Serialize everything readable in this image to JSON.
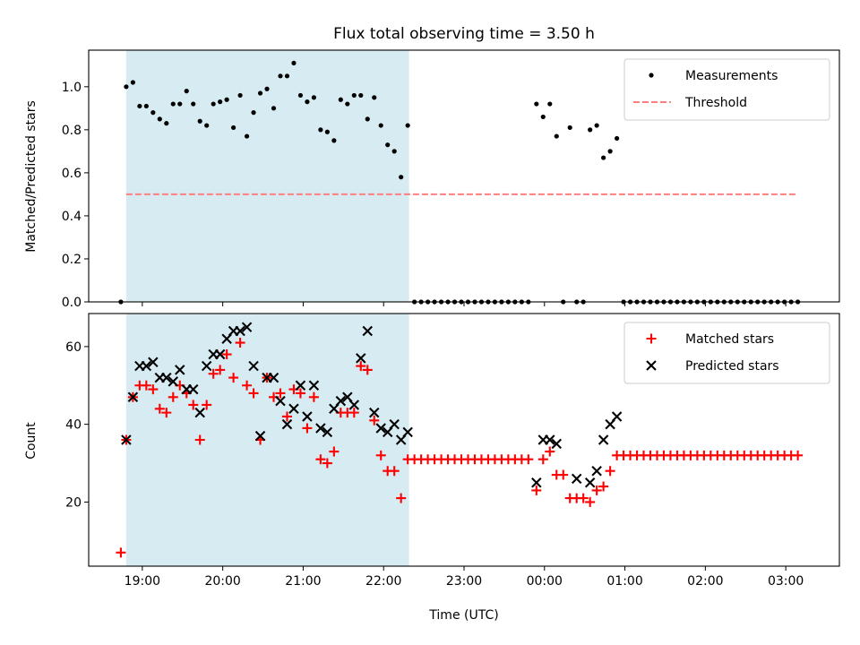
{
  "chart_data": [
    {
      "type": "scatter",
      "title": "Flux total observing time = 3.50 h",
      "ylabel": "Matched/Predicted stars",
      "xlabel": "",
      "xlim": [
        "18:20",
        "03:40"
      ],
      "ylim": [
        0,
        1.17
      ],
      "yticks": [
        "0.0",
        "0.2",
        "0.4",
        "0.6",
        "0.8",
        "1.0"
      ],
      "highlight_span": [
        "18:48",
        "22:19"
      ],
      "legend": {
        "position": "top-right",
        "entries": [
          "Measurements",
          "Threshold"
        ]
      },
      "threshold": {
        "name": "Threshold",
        "y": 0.5,
        "x_start": "18:48",
        "x_end": "03:09",
        "color": "#ff7f7f"
      },
      "series": [
        {
          "name": "Measurements",
          "color": "#000000",
          "points": [
            [
              "18:44",
              0
            ],
            [
              "18:48",
              1.0
            ],
            [
              "18:53",
              1.02
            ],
            [
              "18:58",
              0.91
            ],
            [
              "19:03",
              0.91
            ],
            [
              "19:08",
              0.88
            ],
            [
              "19:13",
              0.85
            ],
            [
              "19:18",
              0.83
            ],
            [
              "19:23",
              0.92
            ],
            [
              "19:28",
              0.92
            ],
            [
              "19:33",
              0.98
            ],
            [
              "19:38",
              0.92
            ],
            [
              "19:43",
              0.84
            ],
            [
              "19:48",
              0.82
            ],
            [
              "19:53",
              0.92
            ],
            [
              "19:58",
              0.93
            ],
            [
              "20:03",
              0.94
            ],
            [
              "20:08",
              0.81
            ],
            [
              "20:13",
              0.96
            ],
            [
              "20:18",
              0.77
            ],
            [
              "20:23",
              0.88
            ],
            [
              "20:28",
              0.97
            ],
            [
              "20:33",
              0.99
            ],
            [
              "20:38",
              0.9
            ],
            [
              "20:43",
              1.05
            ],
            [
              "20:48",
              1.05
            ],
            [
              "20:53",
              1.11
            ],
            [
              "20:58",
              0.96
            ],
            [
              "21:03",
              0.93
            ],
            [
              "21:08",
              0.95
            ],
            [
              "21:13",
              0.8
            ],
            [
              "21:18",
              0.79
            ],
            [
              "21:23",
              0.75
            ],
            [
              "21:28",
              0.94
            ],
            [
              "21:33",
              0.92
            ],
            [
              "21:38",
              0.96
            ],
            [
              "21:43",
              0.96
            ],
            [
              "21:48",
              0.85
            ],
            [
              "21:53",
              0.95
            ],
            [
              "21:58",
              0.82
            ],
            [
              "22:03",
              0.73
            ],
            [
              "22:08",
              0.7
            ],
            [
              "22:13",
              0.58
            ],
            [
              "22:18",
              0.82
            ],
            [
              "22:23",
              0
            ],
            [
              "22:28",
              0
            ],
            [
              "22:33",
              0
            ],
            [
              "22:38",
              0
            ],
            [
              "22:43",
              0
            ],
            [
              "22:48",
              0
            ],
            [
              "22:53",
              0
            ],
            [
              "22:58",
              0
            ],
            [
              "23:03",
              0
            ],
            [
              "23:08",
              0
            ],
            [
              "23:13",
              0
            ],
            [
              "23:18",
              0
            ],
            [
              "23:23",
              0
            ],
            [
              "23:28",
              0
            ],
            [
              "23:33",
              0
            ],
            [
              "23:38",
              0
            ],
            [
              "23:43",
              0
            ],
            [
              "23:48",
              0
            ],
            [
              "23:54",
              0.92
            ],
            [
              "23:59",
              0.86
            ],
            [
              "00:04",
              0.92
            ],
            [
              "00:09",
              0.77
            ],
            [
              "00:14",
              0
            ],
            [
              "00:19",
              0.81
            ],
            [
              "00:24",
              0
            ],
            [
              "00:29",
              0
            ],
            [
              "00:34",
              0.8
            ],
            [
              "00:39",
              0.82
            ],
            [
              "00:44",
              0.67
            ],
            [
              "00:49",
              0.7
            ],
            [
              "00:54",
              0.76
            ],
            [
              "00:59",
              0
            ],
            [
              "01:04",
              0
            ],
            [
              "01:09",
              0
            ],
            [
              "01:14",
              0
            ],
            [
              "01:19",
              0
            ],
            [
              "01:24",
              0
            ],
            [
              "01:29",
              0
            ],
            [
              "01:34",
              0
            ],
            [
              "01:39",
              0
            ],
            [
              "01:44",
              0
            ],
            [
              "01:49",
              0
            ],
            [
              "01:54",
              0
            ],
            [
              "01:59",
              0
            ],
            [
              "02:04",
              0
            ],
            [
              "02:09",
              0
            ],
            [
              "02:14",
              0
            ],
            [
              "02:19",
              0
            ],
            [
              "02:24",
              0
            ],
            [
              "02:29",
              0
            ],
            [
              "02:34",
              0
            ],
            [
              "02:39",
              0
            ],
            [
              "02:44",
              0
            ],
            [
              "02:49",
              0
            ],
            [
              "02:54",
              0
            ],
            [
              "02:59",
              0
            ],
            [
              "03:04",
              0
            ],
            [
              "03:09",
              0
            ]
          ]
        }
      ]
    },
    {
      "type": "scatter",
      "title": "",
      "ylabel": "Count",
      "xlabel": "Time (UTC)",
      "xlim": [
        "18:20",
        "03:40"
      ],
      "ylim": [
        3.5,
        68.5
      ],
      "yticks": [
        "20",
        "40",
        "60"
      ],
      "xticks": [
        "19:00",
        "20:00",
        "21:00",
        "22:00",
        "23:00",
        "00:00",
        "01:00",
        "02:00",
        "03:00"
      ],
      "highlight_span": [
        "18:48",
        "22:19"
      ],
      "legend": {
        "position": "top-right",
        "entries": [
          "Matched stars",
          "Predicted stars"
        ]
      },
      "series": [
        {
          "name": "Matched stars",
          "marker": "plus",
          "color": "#ff0000",
          "points": [
            [
              "18:44",
              7
            ],
            [
              "18:48",
              36
            ],
            [
              "18:53",
              47
            ],
            [
              "18:58",
              50
            ],
            [
              "19:03",
              50
            ],
            [
              "19:08",
              49
            ],
            [
              "19:13",
              44
            ],
            [
              "19:18",
              43
            ],
            [
              "19:23",
              47
            ],
            [
              "19:28",
              50
            ],
            [
              "19:33",
              48
            ],
            [
              "19:38",
              45
            ],
            [
              "19:43",
              36
            ],
            [
              "19:48",
              45
            ],
            [
              "19:53",
              53
            ],
            [
              "19:58",
              54
            ],
            [
              "20:03",
              58
            ],
            [
              "20:08",
              52
            ],
            [
              "20:13",
              61
            ],
            [
              "20:18",
              50
            ],
            [
              "20:23",
              48
            ],
            [
              "20:28",
              36
            ],
            [
              "20:33",
              52
            ],
            [
              "20:38",
              47
            ],
            [
              "20:43",
              48
            ],
            [
              "20:48",
              42
            ],
            [
              "20:53",
              49
            ],
            [
              "20:58",
              48
            ],
            [
              "21:03",
              39
            ],
            [
              "21:08",
              47
            ],
            [
              "21:13",
              31
            ],
            [
              "21:18",
              30
            ],
            [
              "21:23",
              33
            ],
            [
              "21:28",
              43
            ],
            [
              "21:33",
              43
            ],
            [
              "21:38",
              43
            ],
            [
              "21:43",
              55
            ],
            [
              "21:48",
              54
            ],
            [
              "21:53",
              41
            ],
            [
              "21:58",
              32
            ],
            [
              "22:03",
              28
            ],
            [
              "22:08",
              28
            ],
            [
              "22:13",
              21
            ],
            [
              "22:18",
              31
            ],
            [
              "22:23",
              31
            ],
            [
              "22:28",
              31
            ],
            [
              "22:33",
              31
            ],
            [
              "22:38",
              31
            ],
            [
              "22:43",
              31
            ],
            [
              "22:48",
              31
            ],
            [
              "22:53",
              31
            ],
            [
              "22:58",
              31
            ],
            [
              "23:03",
              31
            ],
            [
              "23:08",
              31
            ],
            [
              "23:13",
              31
            ],
            [
              "23:18",
              31
            ],
            [
              "23:23",
              31
            ],
            [
              "23:28",
              31
            ],
            [
              "23:33",
              31
            ],
            [
              "23:38",
              31
            ],
            [
              "23:43",
              31
            ],
            [
              "23:48",
              31
            ],
            [
              "23:54",
              23
            ],
            [
              "23:59",
              31
            ],
            [
              "00:04",
              33
            ],
            [
              "00:09",
              27
            ],
            [
              "00:14",
              27
            ],
            [
              "00:19",
              21
            ],
            [
              "00:24",
              21
            ],
            [
              "00:29",
              21
            ],
            [
              "00:34",
              20
            ],
            [
              "00:39",
              23
            ],
            [
              "00:44",
              24
            ],
            [
              "00:49",
              28
            ],
            [
              "00:54",
              32
            ],
            [
              "00:59",
              32
            ],
            [
              "01:04",
              32
            ],
            [
              "01:09",
              32
            ],
            [
              "01:14",
              32
            ],
            [
              "01:19",
              32
            ],
            [
              "01:24",
              32
            ],
            [
              "01:29",
              32
            ],
            [
              "01:34",
              32
            ],
            [
              "01:39",
              32
            ],
            [
              "01:44",
              32
            ],
            [
              "01:49",
              32
            ],
            [
              "01:54",
              32
            ],
            [
              "01:59",
              32
            ],
            [
              "02:04",
              32
            ],
            [
              "02:09",
              32
            ],
            [
              "02:14",
              32
            ],
            [
              "02:19",
              32
            ],
            [
              "02:24",
              32
            ],
            [
              "02:29",
              32
            ],
            [
              "02:34",
              32
            ],
            [
              "02:39",
              32
            ],
            [
              "02:44",
              32
            ],
            [
              "02:49",
              32
            ],
            [
              "02:54",
              32
            ],
            [
              "02:59",
              32
            ],
            [
              "03:04",
              32
            ],
            [
              "03:09",
              32
            ]
          ]
        },
        {
          "name": "Predicted stars",
          "marker": "x",
          "color": "#000000",
          "points": [
            [
              "18:48",
              36
            ],
            [
              "18:53",
              47
            ],
            [
              "18:58",
              55
            ],
            [
              "19:03",
              55
            ],
            [
              "19:08",
              56
            ],
            [
              "19:13",
              52
            ],
            [
              "19:18",
              52
            ],
            [
              "19:23",
              51
            ],
            [
              "19:28",
              54
            ],
            [
              "19:33",
              49
            ],
            [
              "19:38",
              49
            ],
            [
              "19:43",
              43
            ],
            [
              "19:48",
              55
            ],
            [
              "19:53",
              58
            ],
            [
              "19:58",
              58
            ],
            [
              "20:03",
              62
            ],
            [
              "20:08",
              64
            ],
            [
              "20:13",
              64
            ],
            [
              "20:18",
              65
            ],
            [
              "20:23",
              55
            ],
            [
              "20:28",
              37
            ],
            [
              "20:33",
              52
            ],
            [
              "20:38",
              52
            ],
            [
              "20:43",
              46
            ],
            [
              "20:48",
              40
            ],
            [
              "20:53",
              44
            ],
            [
              "20:58",
              50
            ],
            [
              "21:03",
              42
            ],
            [
              "21:08",
              50
            ],
            [
              "21:13",
              39
            ],
            [
              "21:18",
              38
            ],
            [
              "21:23",
              44
            ],
            [
              "21:28",
              46
            ],
            [
              "21:33",
              47
            ],
            [
              "21:38",
              45
            ],
            [
              "21:43",
              57
            ],
            [
              "21:48",
              64
            ],
            [
              "21:53",
              43
            ],
            [
              "21:58",
              39
            ],
            [
              "22:03",
              38
            ],
            [
              "22:08",
              40
            ],
            [
              "22:13",
              36
            ],
            [
              "22:18",
              38
            ],
            [
              "23:54",
              25
            ],
            [
              "23:59",
              36
            ],
            [
              "00:04",
              36
            ],
            [
              "00:09",
              35
            ],
            [
              "00:24",
              26
            ],
            [
              "00:34",
              25
            ],
            [
              "00:39",
              28
            ],
            [
              "00:44",
              36
            ],
            [
              "00:49",
              40
            ],
            [
              "00:54",
              42
            ]
          ]
        }
      ]
    }
  ]
}
